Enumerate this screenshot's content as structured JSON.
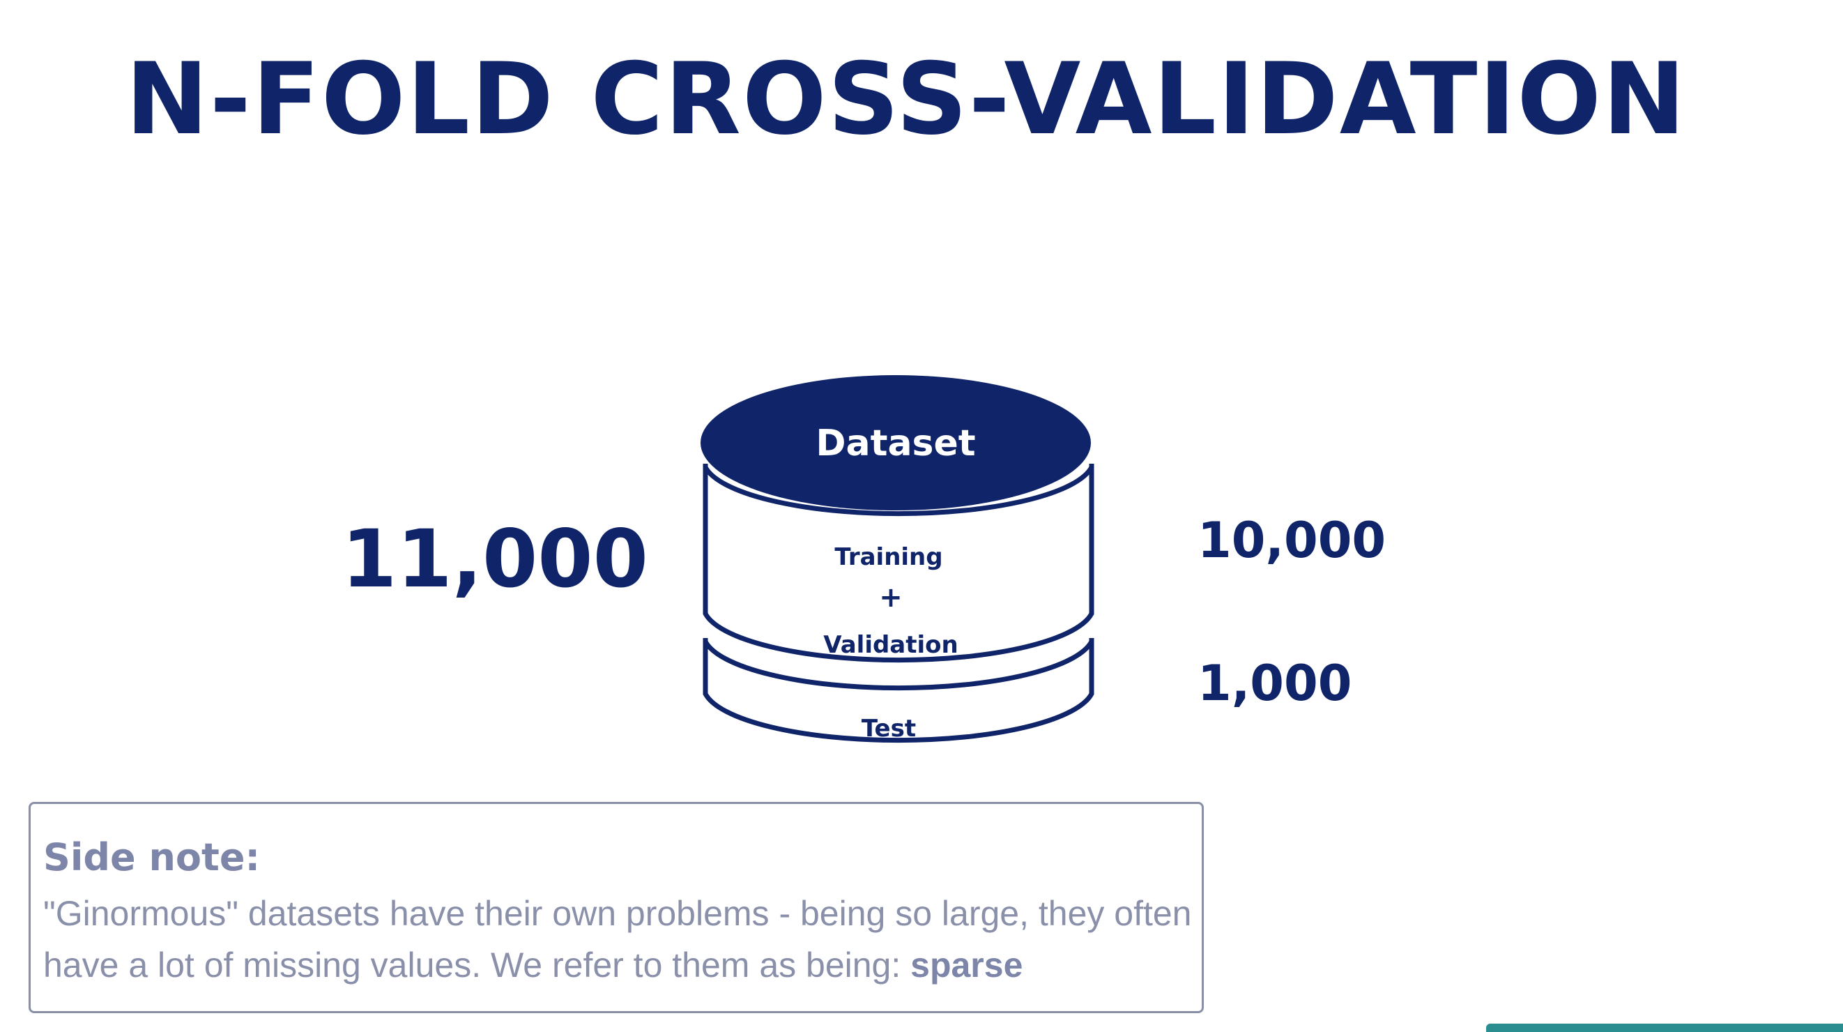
{
  "title": "N-FOLD CROSS-VALIDATION",
  "diagram": {
    "total": "11,000",
    "top_label": "Dataset",
    "middle_label_1": "Training",
    "middle_label_plus": "+",
    "middle_label_2": "Validation",
    "bottom_label": "Test",
    "training_count": "10,000",
    "test_count": "1,000"
  },
  "side_note": {
    "heading": "Side note:",
    "body": "\"Ginormous\" datasets have their own problems - being so large, they often have a lot of missing values. We refer to them as being: ",
    "emphasis": "sparse"
  },
  "colors": {
    "primary": "#0f2469",
    "note_text": "#8a90aa",
    "accent_bar": "#2a8d8f"
  }
}
